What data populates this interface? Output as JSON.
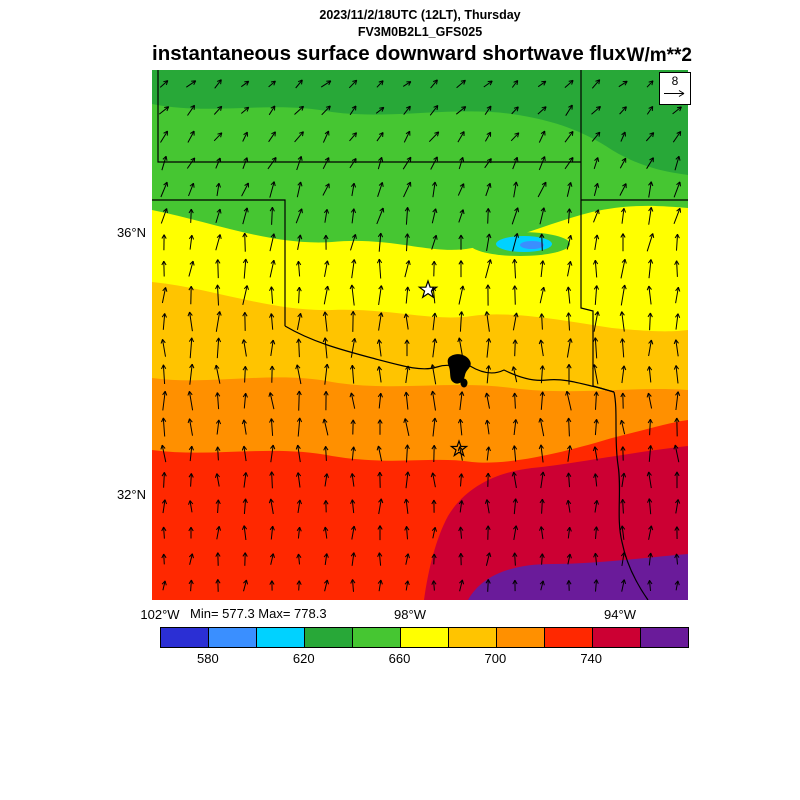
{
  "header": {
    "datetime": "2023/11/2/18UTC (12LT), Thursday",
    "model": "FV3M0B2L1_GFS025",
    "title": "instantaneous surface downward shortwave flux",
    "units": "W/m**2"
  },
  "map": {
    "stats": "Min= 577.3 Max= 778.3",
    "vector_reference": "8",
    "lat_ticks": [
      "36°N",
      "32°N"
    ],
    "lon_ticks": [
      "102°W",
      "98°W",
      "94°W"
    ]
  },
  "chart_data": {
    "type": "heatmap",
    "title": "instantaneous surface downward shortwave flux",
    "subtitle_lines": [
      "2023/11/2/18UTC (12LT), Thursday",
      "FV3M0B2L1_GFS025"
    ],
    "units": "W/m**2",
    "min": 577.3,
    "max": 778.3,
    "lat_ticks": [
      "36°N",
      "32°N"
    ],
    "lon_ticks": [
      "102°W",
      "98°W",
      "94°W"
    ],
    "wind": {
      "reference_value": 8
    },
    "colorbar": {
      "levels": [
        560,
        580,
        600,
        620,
        640,
        660,
        680,
        700,
        720,
        740,
        760,
        780
      ],
      "ticks": [
        580,
        620,
        660,
        700,
        740
      ],
      "colors": [
        "#2b2fd4",
        "#3a8fff",
        "#00d2ff",
        "#28a838",
        "#46c632",
        "#ffff00",
        "#ffc400",
        "#ff9000",
        "#ff2800",
        "#cc0033",
        "#6a1b9a"
      ],
      "orientation": "horizontal"
    }
  }
}
